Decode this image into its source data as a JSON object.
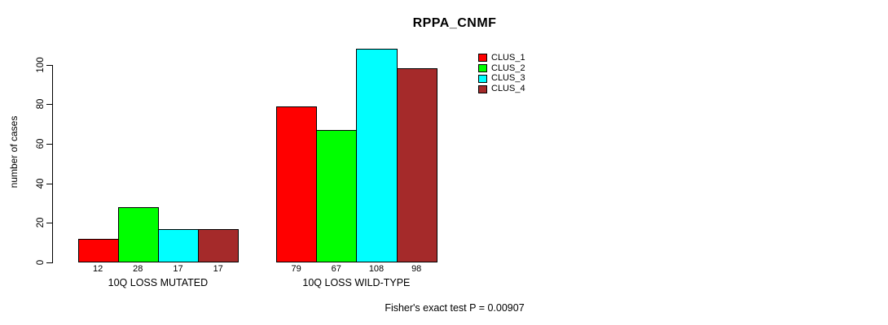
{
  "chart_data": {
    "type": "bar",
    "title": "RPPA_CNMF",
    "ylabel": "number of cases",
    "xlabel": "",
    "ylim": [
      0,
      110
    ],
    "yticks": [
      0,
      20,
      40,
      60,
      80,
      100
    ],
    "grid": false,
    "legend_position": "right",
    "categories": [
      "10Q LOSS MUTATED",
      "10Q LOSS WILD-TYPE"
    ],
    "series": [
      {
        "name": "CLUS_1",
        "color": "#FF0000",
        "values": [
          12,
          79
        ]
      },
      {
        "name": "CLUS_2",
        "color": "#00FF00",
        "values": [
          28,
          67
        ]
      },
      {
        "name": "CLUS_3",
        "color": "#00FFFF",
        "values": [
          17,
          108
        ]
      },
      {
        "name": "CLUS_4",
        "color": "#A52A2A",
        "values": [
          17,
          98
        ]
      }
    ],
    "bar_value_labels": [
      [
        12,
        28,
        17,
        17
      ],
      [
        79,
        67,
        108,
        98
      ]
    ],
    "annotation": "Fisher's exact test P = 0.00907"
  }
}
